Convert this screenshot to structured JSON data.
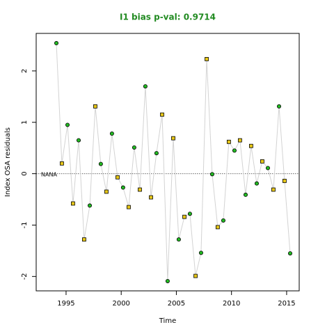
{
  "chart_data": {
    "type": "line",
    "title": "I1 bias p-val: 0.9714",
    "title_color": "#228b22",
    "x_label": "Time",
    "y_label": "Index OSA residuals",
    "annotation": "NANA",
    "x": [
      1994.12,
      1994.62,
      1995.13,
      1995.63,
      1996.14,
      1996.64,
      1997.15,
      1997.65,
      1998.15,
      1998.66,
      1999.16,
      1999.67,
      2000.17,
      2000.68,
      2001.18,
      2001.69,
      2002.19,
      2002.7,
      2003.2,
      2003.71,
      2004.21,
      2004.72,
      2005.22,
      2005.73,
      2006.23,
      2006.74,
      2007.24,
      2007.75,
      2008.25,
      2008.75,
      2009.26,
      2009.76,
      2010.27,
      2010.77,
      2011.28,
      2011.78,
      2012.29,
      2012.79,
      2013.3,
      2013.8,
      2014.31,
      2014.81,
      2015.32
    ],
    "values": [
      2.54,
      0.2,
      0.95,
      -0.58,
      0.65,
      -1.28,
      -0.62,
      1.31,
      0.19,
      -0.35,
      0.78,
      -0.07,
      -0.27,
      -0.65,
      0.51,
      -0.31,
      1.7,
      -0.46,
      0.4,
      1.15,
      -2.09,
      0.69,
      -1.28,
      -0.84,
      -0.78,
      -1.99,
      -1.54,
      2.23,
      -0.01,
      -1.04,
      -0.91,
      0.62,
      0.45,
      0.65,
      -0.41,
      0.54,
      -0.19,
      0.24,
      0.11,
      -0.31,
      1.31,
      -0.14,
      -1.55
    ],
    "line_color": "#d3d3d3",
    "marker_styles": [
      {
        "shape": "circle",
        "color": "#22bb22"
      },
      {
        "shape": "square",
        "color": "#e6c619"
      }
    ],
    "hline": 0,
    "xlim": [
      1992.29,
      2016.14
    ],
    "ylim": [
      -2.28,
      2.73
    ],
    "xticks": [
      1995,
      2000,
      2005,
      2010,
      2015
    ],
    "yticks": [
      -2,
      -1,
      0,
      1,
      2
    ]
  }
}
